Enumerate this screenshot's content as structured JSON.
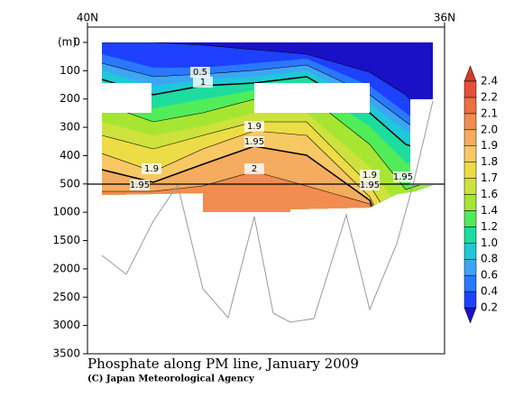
{
  "chart_data": {
    "type": "contour",
    "title": "Phosphate along PM line, January 2009",
    "credit": "(C) Japan Meteorological Agency",
    "ylabel": "(m)",
    "xlim": [
      40,
      36
    ],
    "xticks": [
      {
        "value": 40,
        "label": "40N"
      },
      {
        "value": 36,
        "label": "36N"
      }
    ],
    "ylim": [
      0,
      3500
    ],
    "yticks": [
      0,
      100,
      200,
      300,
      400,
      500,
      1000,
      1500,
      2000,
      2500,
      3000,
      3500
    ],
    "colorbar": {
      "ticks": [
        0.2,
        0.4,
        0.6,
        0.8,
        {
          "value": 1.0,
          "label": "1.0"
        },
        1.2,
        1.4,
        1.6,
        1.7,
        1.8,
        1.9,
        {
          "value": 2.0,
          "label": "2.0"
        },
        2.1,
        2.2,
        2.4
      ],
      "colors": [
        "#1a10c8",
        "#1e40ff",
        "#2a78ff",
        "#3ca6f5",
        "#1ec8d8",
        "#1edc9e",
        "#50ec5a",
        "#a6e632",
        "#cde23c",
        "#ecdc46",
        "#f7c864",
        "#f5ac5e",
        "#f28c50",
        "#ee6e40",
        "#e6503a",
        "#d23c28"
      ]
    },
    "contour_labels": [
      "0.5",
      "1",
      "1.9",
      "1.95",
      "1.9",
      "1.95",
      "2",
      "1.9",
      "1.95",
      "1.95"
    ]
  }
}
